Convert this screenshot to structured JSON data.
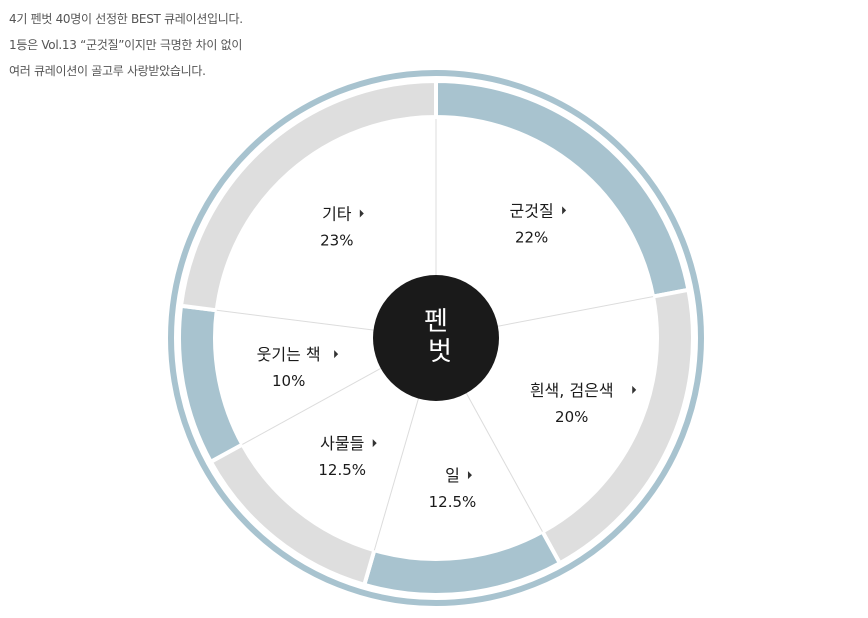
{
  "intro": {
    "line1": "4기 펜벗 40명이 선정한 BEST 큐레이션입니다.",
    "line2": "1등은 Vol.13 “군것질”이지만 극명한 차이 없이",
    "line3": "여러 큐레이션이 골고루 사랑받았습니다."
  },
  "center_logo": {
    "line1": "펜",
    "line2": "벗"
  },
  "colors": {
    "outer_ring": "#a8c3cf",
    "segment_blue": "#a8c3cf",
    "segment_gray": "#dedede",
    "center": "#1a1a1a",
    "divider": "#dcdcdc"
  },
  "chart_data": {
    "type": "pie",
    "title": "",
    "categories": [
      "군것질",
      "흰색, 검은색",
      "일",
      "사물들",
      "웃기는 책",
      "기타"
    ],
    "values": [
      22,
      20,
      12.5,
      12.5,
      10,
      23
    ],
    "value_labels": [
      "22%",
      "20%",
      "12.5%",
      "12.5%",
      "10%",
      "23%"
    ],
    "segment_colors": [
      "#a8c3cf",
      "#dedede",
      "#a8c3cf",
      "#dedede",
      "#a8c3cf",
      "#dedede"
    ],
    "start": "12 o'clock",
    "direction": "clockwise",
    "legend": "none"
  }
}
